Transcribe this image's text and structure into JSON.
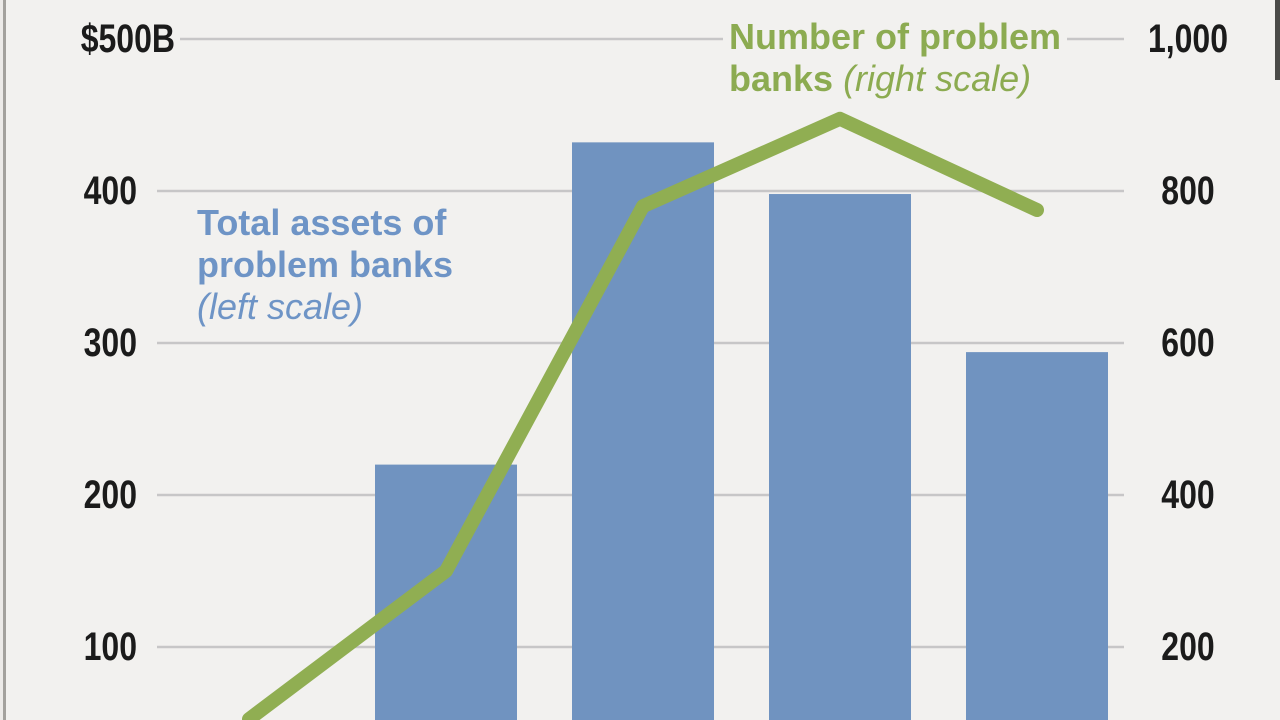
{
  "figure": {
    "background": "#f2f1ef",
    "frame_strip_color": "#eceae8",
    "frame_left_line_color": "#a3a19d",
    "right_edge_mark_color": "#4a4a48",
    "gridline_color": "#c7c6c7"
  },
  "legend": {
    "bars": {
      "line1": "Total assets of",
      "line2": "problem banks",
      "scale_note": "(left scale)",
      "color": "#6e94c6"
    },
    "line": {
      "line1": "Number of problem",
      "line2_bold": "banks",
      "scale_note": "(right scale)",
      "color": "#8cab51"
    }
  },
  "axes": {
    "left": {
      "labels": [
        "$500B",
        "400",
        "300",
        "200",
        "100"
      ],
      "values": [
        500,
        400,
        300,
        200,
        100
      ]
    },
    "right": {
      "labels": [
        "1,000",
        "800",
        "600",
        "400",
        "200"
      ],
      "values": [
        1000,
        800,
        600,
        400,
        200
      ]
    }
  },
  "chart_data": {
    "type": "combo",
    "title": "",
    "x_axis_labels_visible": false,
    "gridlines": true,
    "left_axis": {
      "min": 100,
      "max": 500,
      "tick_step": 100,
      "top_label": "$500B",
      "unit": "billions USD"
    },
    "right_axis": {
      "min": 200,
      "max": 1000,
      "tick_step": 200
    },
    "series": [
      {
        "name": "Total assets of problem banks",
        "type": "bar",
        "axis": "left",
        "color": "#7093c0",
        "values": [
          220,
          432,
          398,
          294
        ]
      },
      {
        "name": "Number of problem banks",
        "type": "line",
        "axis": "right",
        "color": "#90ae52",
        "values": [
          105,
          300,
          780,
          895,
          775
        ],
        "note": "first point sits at the cropped bottom-left edge, one category before the first visible bar; category labels are cropped out of the screenshot"
      }
    ]
  }
}
